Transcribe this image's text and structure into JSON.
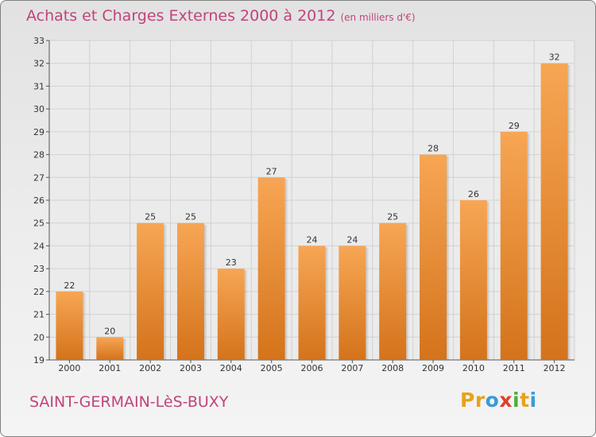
{
  "header": {
    "title": "Achats et Charges Externes 2000 à 2012",
    "unit": "(en milliers d'€)"
  },
  "footer": {
    "commune": "SAINT-GERMAIN-LèS-BUXY",
    "logo_letters": [
      {
        "char": "P",
        "color": "#e8a21a"
      },
      {
        "char": "r",
        "color": "#e8a21a"
      },
      {
        "char": "o",
        "color": "#3a9ad9"
      },
      {
        "char": "x",
        "color": "#e0402a"
      },
      {
        "char": "i",
        "color": "#4caf3a"
      },
      {
        "char": "t",
        "color": "#e8a21a"
      },
      {
        "char": "i",
        "color": "#3a9ad9"
      }
    ]
  },
  "colors": {
    "accent": "#c2437a",
    "bar_light": "#f7a654",
    "bar_dark": "#d4731b",
    "grid": "#d2d2d2"
  },
  "chart_data": {
    "type": "bar",
    "categories": [
      "2000",
      "2001",
      "2002",
      "2003",
      "2004",
      "2005",
      "2006",
      "2007",
      "2008",
      "2009",
      "2010",
      "2011",
      "2012"
    ],
    "values": [
      22,
      20,
      25,
      25,
      23,
      27,
      24,
      24,
      25,
      28,
      26,
      29,
      32
    ],
    "ylim": [
      19,
      33
    ],
    "yticks": [
      19,
      20,
      21,
      22,
      23,
      24,
      25,
      26,
      27,
      28,
      29,
      30,
      31,
      32,
      33
    ],
    "grid": true,
    "data_labels": true
  }
}
